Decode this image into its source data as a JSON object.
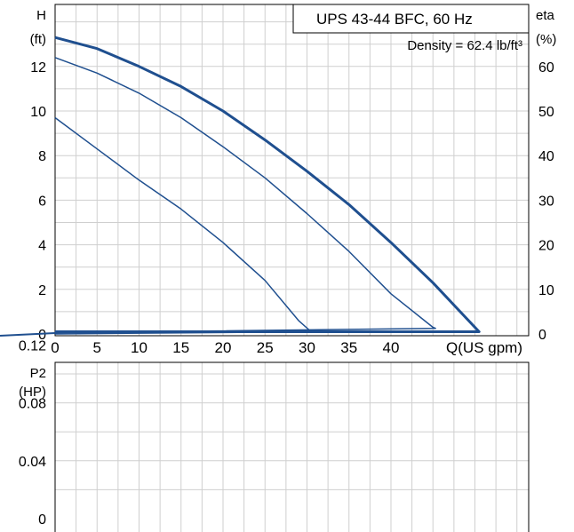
{
  "chart_data": [
    {
      "type": "line",
      "title": "UPS 43-44 BFC, 60 Hz",
      "subtitle": "Density = 62.4 lb/ft³",
      "xlabel": "Q(US gpm)",
      "ylabel": "H",
      "ylabel_unit": "(ft)",
      "y2label": "eta",
      "y2label_unit": "(%)",
      "xlim": [
        0,
        56
      ],
      "ylim": [
        0,
        14
      ],
      "y2lim": [
        0,
        70
      ],
      "x_ticks": [
        0,
        5,
        10,
        15,
        20,
        25,
        30,
        35,
        40
      ],
      "y_ticks": [
        0,
        2,
        4,
        6,
        8,
        10,
        12
      ],
      "y2_ticks": [
        0,
        10,
        20,
        30,
        40,
        50,
        60
      ],
      "grid": true,
      "color": "#1f4f8f",
      "series": [
        {
          "x": [
            0,
            5,
            10,
            15,
            20,
            25,
            30,
            35,
            40,
            45,
            50.5,
            0
          ],
          "y": [
            13.3,
            12.8,
            12.0,
            11.1,
            10.0,
            8.7,
            7.3,
            5.8,
            4.1,
            2.3,
            0.1,
            0.1
          ],
          "width": 3
        },
        {
          "x": [
            0,
            5,
            10,
            15,
            20,
            25,
            30,
            35,
            40,
            45,
            45.3,
            0
          ],
          "y": [
            12.4,
            11.7,
            10.8,
            9.7,
            8.4,
            7.0,
            5.4,
            3.7,
            1.8,
            0.3,
            0.25,
            0.05
          ],
          "width": 1.5
        },
        {
          "x": [
            0,
            5,
            10,
            15,
            20,
            25,
            29,
            30.5,
            0
          ],
          "y": [
            9.7,
            8.3,
            6.9,
            5.6,
            4.1,
            2.4,
            0.6,
            0.1,
            0.0
          ],
          "width": 1.5
        }
      ]
    },
    {
      "type": "line",
      "xlabel": "",
      "ylabel": "P2",
      "ylabel_unit": "(HP)",
      "xlim": [
        0,
        56
      ],
      "ylim": [
        0,
        0.18
      ],
      "y_ticks": [
        "0",
        "0.04",
        "0.08",
        "0.12"
      ],
      "y_tick_values": [
        0,
        0.04,
        0.08,
        0.12
      ],
      "grid": true,
      "series": []
    }
  ]
}
